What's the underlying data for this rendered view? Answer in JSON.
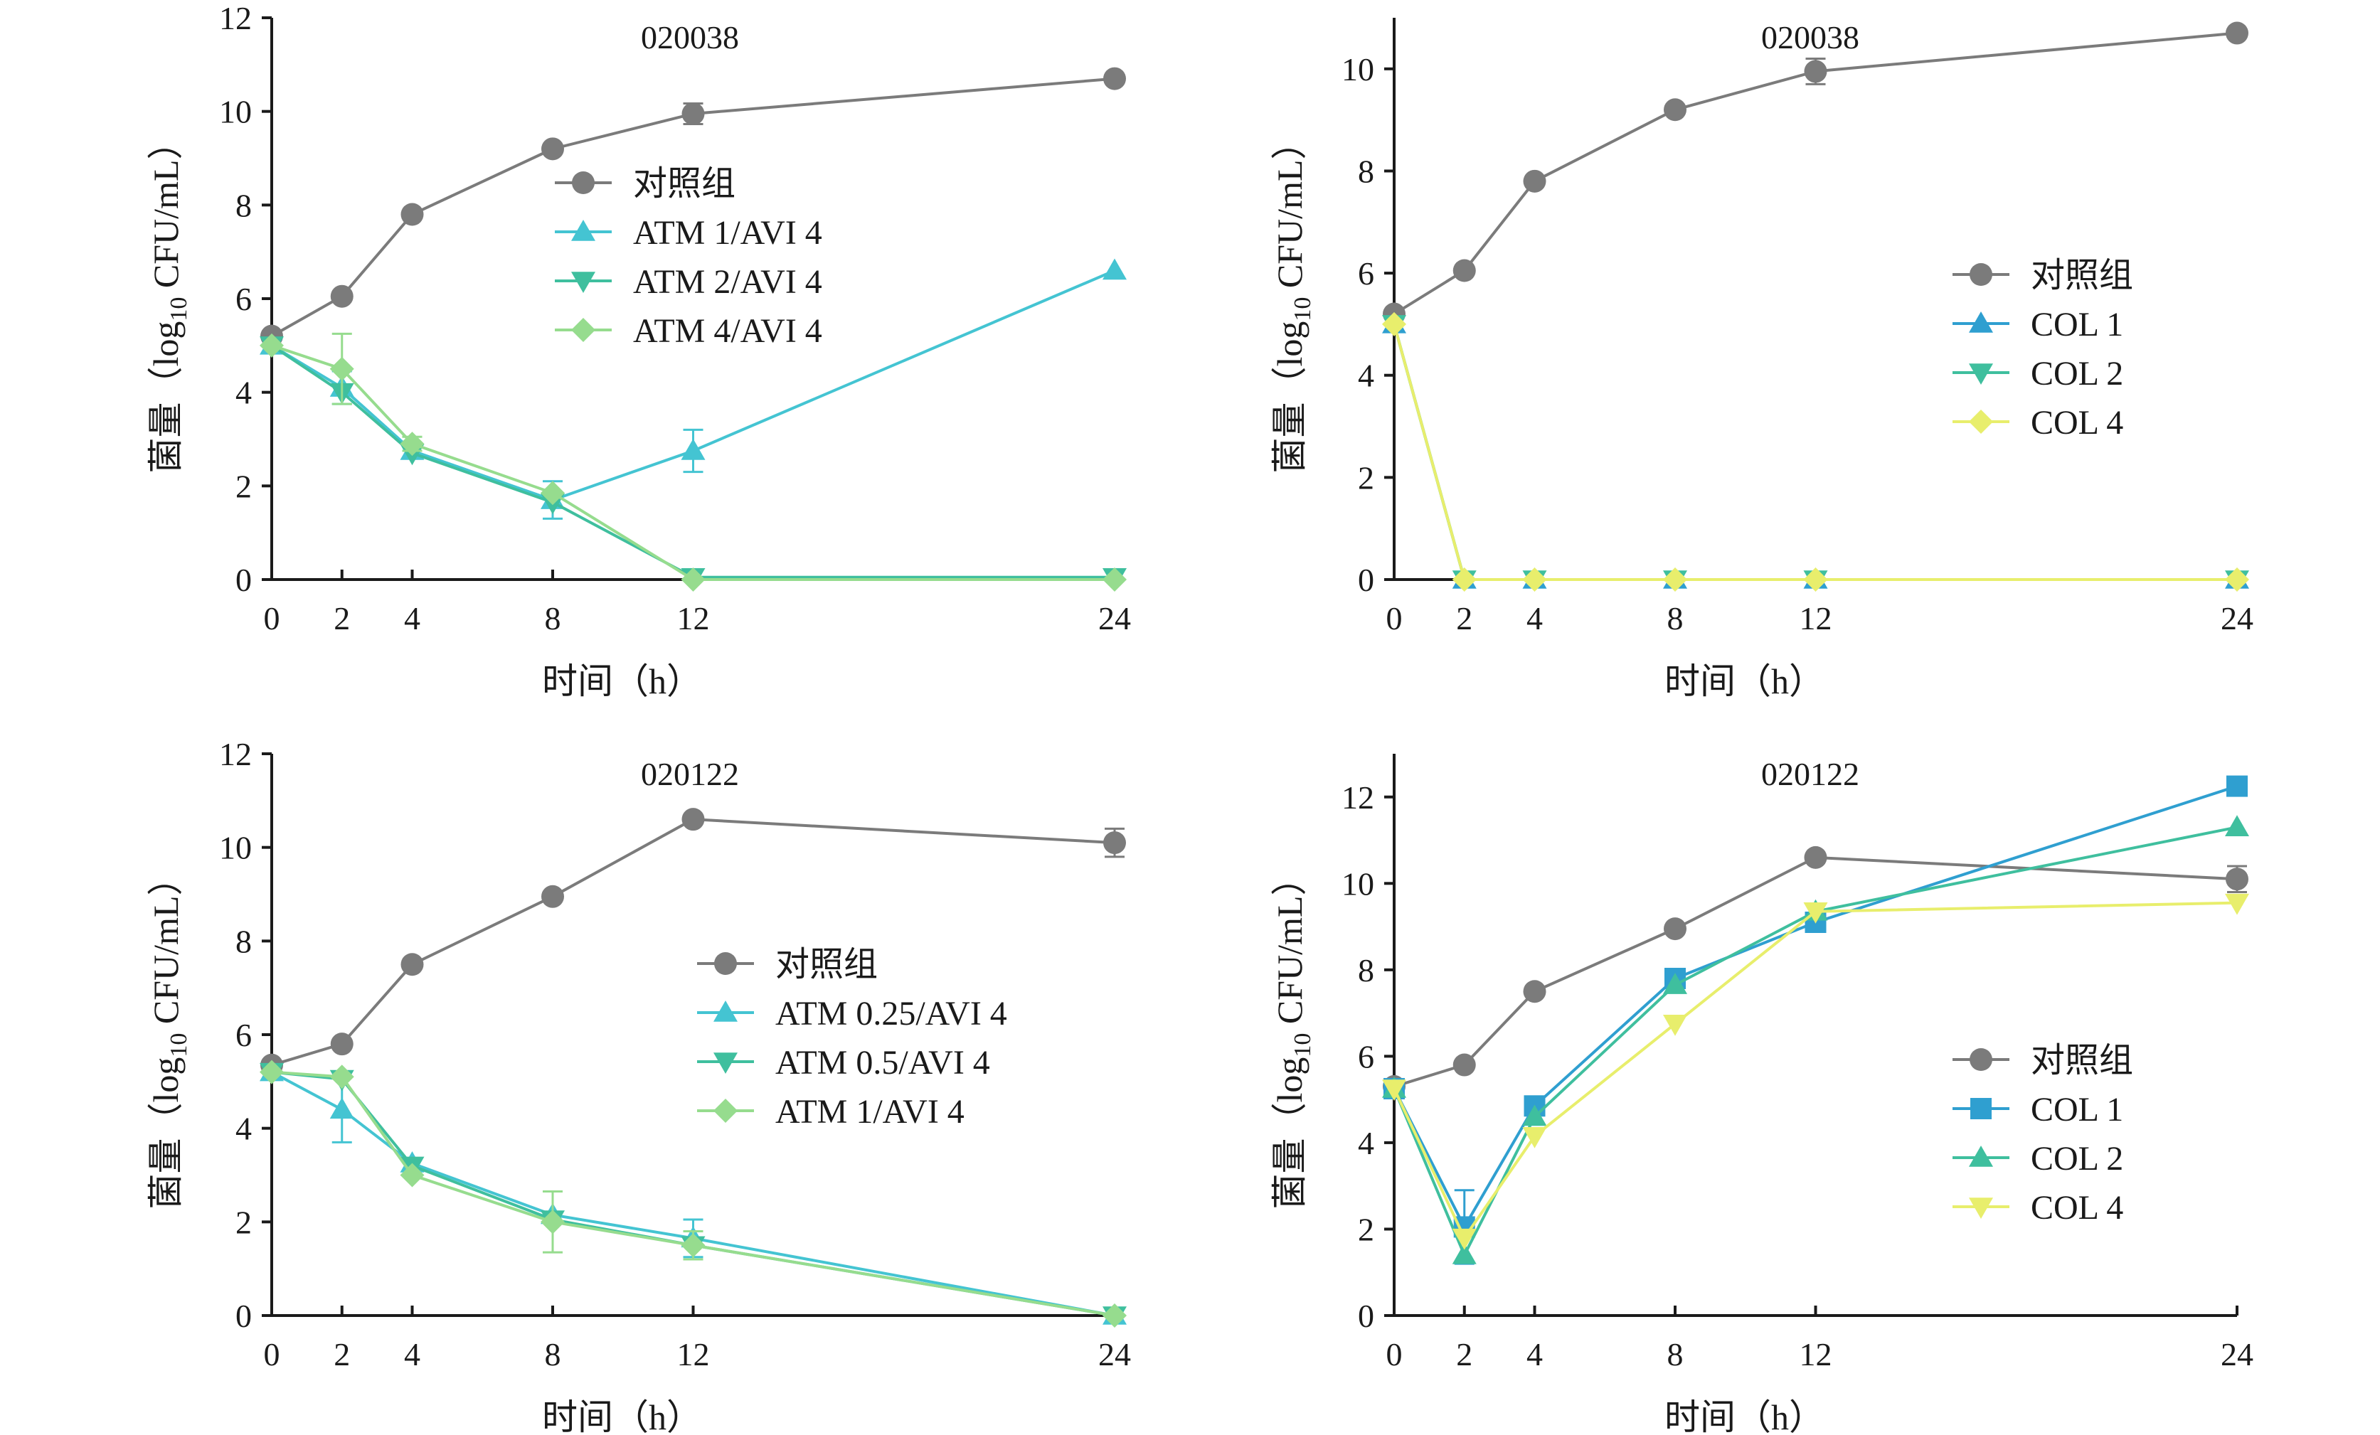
{
  "chart_data": [
    {
      "type": "line",
      "title": "020038",
      "xlabel": "时间（h）",
      "ylabel": "菌量（log10 CFU/mL）",
      "ylabel_main": "菌量（log",
      "ylabel_sub": "10",
      "ylabel_tail": " CFU/mL）",
      "x": [
        0,
        2,
        4,
        8,
        12,
        24
      ],
      "xticks": [
        "0",
        "2",
        "4",
        "8",
        "12",
        "24"
      ],
      "ylim": [
        0,
        12
      ],
      "yticks": [
        "0",
        "2",
        "4",
        "6",
        "8",
        "10",
        "12"
      ],
      "legend_position": "center",
      "series": [
        {
          "name": "对照组",
          "marker": "circle",
          "color": "#7b7b7b",
          "values": [
            5.2,
            6.05,
            7.8,
            9.2,
            9.95,
            10.7
          ],
          "errors": [
            0,
            0,
            0,
            0,
            0.22,
            0
          ]
        },
        {
          "name": "ATM 1/AVI 4",
          "marker": "triangle-up",
          "color": "#44c4d2",
          "values": [
            5.0,
            4.1,
            2.75,
            1.7,
            2.75,
            6.6
          ],
          "errors": [
            0,
            0.35,
            0,
            0.4,
            0.45,
            0
          ]
        },
        {
          "name": "ATM 2/AVI 4",
          "marker": "triangle-down",
          "color": "#3fbf9e",
          "values": [
            5.0,
            4.0,
            2.7,
            1.65,
            0.05,
            0.05
          ],
          "errors": [
            0,
            0,
            0,
            0,
            0,
            0
          ]
        },
        {
          "name": "ATM 4/AVI 4",
          "marker": "diamond",
          "color": "#96dc8e",
          "values": [
            5.0,
            4.5,
            2.9,
            1.85,
            0.0,
            0.0
          ],
          "errors": [
            0,
            0.75,
            0.15,
            0,
            0,
            0
          ]
        }
      ]
    },
    {
      "type": "line",
      "title": "020038",
      "xlabel": "时间（h）",
      "ylabel": "菌量（log10 CFU/mL）",
      "ylabel_main": "菌量（log",
      "ylabel_sub": "10",
      "ylabel_tail": " CFU/mL）",
      "x": [
        0,
        2,
        4,
        8,
        12,
        24
      ],
      "xticks": [
        "0",
        "2",
        "4",
        "8",
        "12",
        "24"
      ],
      "ylim": [
        0,
        11
      ],
      "yticks": [
        "0",
        "2",
        "4",
        "6",
        "8",
        "10"
      ],
      "legend_position": "right",
      "series": [
        {
          "name": "对照组",
          "marker": "circle",
          "color": "#7b7b7b",
          "values": [
            5.2,
            6.05,
            7.8,
            9.2,
            9.95,
            10.7
          ],
          "errors": [
            0,
            0,
            0,
            0,
            0.25,
            0
          ]
        },
        {
          "name": "COL 1",
          "marker": "triangle-up",
          "color": "#2f9fd0",
          "values": [
            5.0,
            0.0,
            0.0,
            0.0,
            0.0,
            0.0
          ],
          "errors": [
            0,
            0,
            0,
            0,
            0,
            0
          ]
        },
        {
          "name": "COL 2",
          "marker": "triangle-down",
          "color": "#3fbf9e",
          "values": [
            5.0,
            0.0,
            0.0,
            0.0,
            0.0,
            0.0
          ],
          "errors": [
            0,
            0,
            0,
            0,
            0,
            0
          ]
        },
        {
          "name": "COL 4",
          "marker": "diamond",
          "color": "#e8ee6c",
          "values": [
            5.0,
            0.0,
            0.0,
            0.0,
            0.0,
            0.0
          ],
          "errors": [
            0,
            0,
            0,
            0,
            0,
            0
          ]
        }
      ]
    },
    {
      "type": "line",
      "title": "020122",
      "xlabel": "时间（h）",
      "ylabel": "菌量（log10 CFU/mL）",
      "ylabel_main": "菌量（log",
      "ylabel_sub": "10",
      "ylabel_tail": " CFU/mL）",
      "x": [
        0,
        2,
        4,
        8,
        12,
        24
      ],
      "xticks": [
        "0",
        "2",
        "4",
        "8",
        "12",
        "24"
      ],
      "ylim": [
        0,
        12
      ],
      "yticks": [
        "0",
        "2",
        "4",
        "6",
        "8",
        "10",
        "12"
      ],
      "legend_position": "center",
      "series": [
        {
          "name": "对照组",
          "marker": "circle",
          "color": "#7b7b7b",
          "values": [
            5.35,
            5.8,
            7.5,
            8.95,
            10.6,
            10.1
          ],
          "errors": [
            0,
            0,
            0,
            0,
            0,
            0.3
          ]
        },
        {
          "name": "ATM 0.25/AVI 4",
          "marker": "triangle-up",
          "color": "#44c4d2",
          "values": [
            5.2,
            4.4,
            3.25,
            2.15,
            1.65,
            0.0
          ],
          "errors": [
            0,
            0.7,
            0,
            0,
            0.4,
            0
          ]
        },
        {
          "name": "ATM 0.5/AVI 4",
          "marker": "triangle-down",
          "color": "#3fbf9e",
          "values": [
            5.2,
            5.05,
            3.2,
            2.05,
            1.5,
            0.0
          ],
          "errors": [
            0,
            0,
            0,
            0,
            0,
            0
          ]
        },
        {
          "name": "ATM 1/AVI 4",
          "marker": "diamond",
          "color": "#96dc8e",
          "values": [
            5.2,
            5.1,
            3.0,
            2.0,
            1.5,
            0.0
          ],
          "errors": [
            0,
            0,
            0,
            0.65,
            0.3,
            0
          ]
        }
      ]
    },
    {
      "type": "line",
      "title": "020122",
      "xlabel": "时间（h）",
      "ylabel": "菌量（log10 CFU/mL）",
      "ylabel_main": "菌量（log",
      "ylabel_sub": "10",
      "ylabel_tail": " CFU/mL）",
      "x": [
        0,
        2,
        4,
        8,
        12,
        24
      ],
      "xticks": [
        "0",
        "2",
        "4",
        "8",
        "12",
        "24"
      ],
      "ylim": [
        0,
        13
      ],
      "yticks": [
        "0",
        "2",
        "4",
        "6",
        "8",
        "10",
        "12"
      ],
      "legend_position": "right",
      "series": [
        {
          "name": "对照组",
          "marker": "circle",
          "color": "#7b7b7b",
          "values": [
            5.3,
            5.8,
            7.5,
            8.95,
            10.6,
            10.1
          ],
          "errors": [
            0,
            0,
            0,
            0,
            0,
            0.3
          ]
        },
        {
          "name": "COL 1",
          "marker": "square",
          "color": "#2f9fd0",
          "values": [
            5.25,
            2.05,
            4.85,
            7.8,
            9.1,
            12.25
          ],
          "errors": [
            0,
            0.85,
            0,
            0,
            0,
            0
          ]
        },
        {
          "name": "COL 2",
          "marker": "triangle-up",
          "color": "#3fbf9e",
          "values": [
            5.25,
            1.4,
            4.6,
            7.65,
            9.35,
            11.3
          ],
          "errors": [
            0,
            0,
            0,
            0,
            0,
            0
          ]
        },
        {
          "name": "COL 4",
          "marker": "triangle-down",
          "color": "#e8ee6c",
          "values": [
            5.25,
            1.8,
            4.15,
            6.75,
            9.35,
            9.55
          ],
          "errors": [
            0,
            0,
            0,
            0,
            0,
            0
          ]
        }
      ]
    }
  ]
}
